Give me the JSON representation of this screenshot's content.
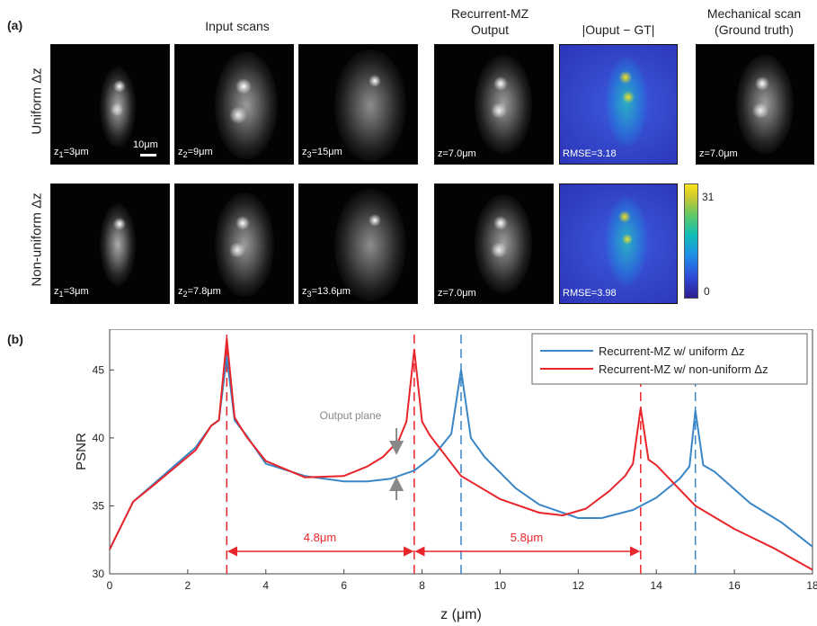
{
  "panel_a": {
    "label": "(a)",
    "headers": {
      "input": "Input scans",
      "recurrent_line1": "Recurrent-MZ",
      "recurrent_line2": "Output",
      "diff": "|Ouput − GT|",
      "mech_line1": "Mechanical scan",
      "mech_line2": "(Ground truth)"
    },
    "row_labels": [
      "Uniform Δz",
      "Non-uniform Δz"
    ],
    "scale_bar": "10μm",
    "rows": [
      {
        "inputs": [
          {
            "prefix": "z",
            "sub": "1",
            "rest": "=3μm"
          },
          {
            "prefix": "z",
            "sub": "2",
            "rest": "=9μm"
          },
          {
            "prefix": "z",
            "sub": "3",
            "rest": "=15μm"
          }
        ],
        "output_label": "z=7.0μm",
        "rmse": "RMSE=3.18",
        "gt_label": "z=7.0μm"
      },
      {
        "inputs": [
          {
            "prefix": "z",
            "sub": "1",
            "rest": "=3μm"
          },
          {
            "prefix": "z",
            "sub": "2",
            "rest": "=7.8μm"
          },
          {
            "prefix": "z",
            "sub": "3",
            "rest": "=13.6μm"
          }
        ],
        "output_label": "z=7.0μm",
        "rmse": "RMSE=3.98"
      }
    ],
    "colorbar": {
      "max": "31",
      "min": "0"
    }
  },
  "panel_b": {
    "label": "(b)",
    "annotations": {
      "output_plane": "Output plane",
      "gap1": "4.8μm",
      "gap2": "5.8μm"
    },
    "colors": {
      "uniform": "#3a86c6",
      "nonuniform": "#e8252a",
      "arrow_gray": "#888888"
    }
  },
  "chart_data": {
    "type": "line",
    "title": "",
    "xlabel": "z (μm)",
    "ylabel": "PSNR",
    "xlim": [
      0,
      18
    ],
    "ylim": [
      30,
      48
    ],
    "xticks": [
      0,
      2,
      4,
      6,
      8,
      10,
      12,
      14,
      16,
      18
    ],
    "yticks": [
      30,
      35,
      40,
      45
    ],
    "legend_position": "top-right",
    "series": [
      {
        "name": "Recurrent-MZ w/ uniform Δz",
        "color": "#3a86c6",
        "x": [
          0,
          0.6,
          1.2,
          2.2,
          2.6,
          2.8,
          3.0,
          3.2,
          3.5,
          4.0,
          5.0,
          6.0,
          6.6,
          7.2,
          7.8,
          8.3,
          8.75,
          9.0,
          9.25,
          9.6,
          10.4,
          11.0,
          12.0,
          12.6,
          13.4,
          14.0,
          14.6,
          14.85,
          15.0,
          15.2,
          15.5,
          16.4,
          17.2,
          18.0
        ],
        "y": [
          31.8,
          35.3,
          36.8,
          39.3,
          40.9,
          41.3,
          46.0,
          41.3,
          40.2,
          38.1,
          37.2,
          36.8,
          36.8,
          37.0,
          37.6,
          38.7,
          40.3,
          45.0,
          40.0,
          38.6,
          36.3,
          35.1,
          34.1,
          34.1,
          34.7,
          35.6,
          37.0,
          37.9,
          42.0,
          38.0,
          37.5,
          35.2,
          33.8,
          32.0
        ]
      },
      {
        "name": "Recurrent-MZ w/ non-uniform Δz",
        "color": "#e8252a",
        "x": [
          0,
          0.6,
          1.2,
          2.2,
          2.6,
          2.8,
          3.0,
          3.2,
          3.5,
          4.0,
          5.0,
          6.0,
          6.6,
          7.0,
          7.4,
          7.6,
          7.8,
          8.0,
          8.2,
          9.0,
          10.0,
          11.0,
          11.6,
          12.2,
          12.8,
          13.2,
          13.4,
          13.6,
          13.8,
          14.0,
          15.0,
          16.0,
          17.0,
          18.0
        ],
        "y": [
          31.8,
          35.3,
          36.7,
          39.1,
          40.9,
          41.3,
          47.3,
          41.5,
          40.1,
          38.3,
          37.1,
          37.2,
          37.9,
          38.6,
          39.8,
          41.2,
          46.5,
          41.2,
          40.2,
          37.2,
          35.5,
          34.5,
          34.3,
          34.8,
          36.1,
          37.2,
          38.1,
          42.2,
          38.4,
          38.0,
          35.0,
          33.3,
          31.9,
          30.3
        ]
      }
    ],
    "vlines": [
      {
        "x": 3.0,
        "color": "#e8252a"
      },
      {
        "x": 7.8,
        "color": "#e8252a"
      },
      {
        "x": 13.6,
        "color": "#e8252a"
      },
      {
        "x": 9.0,
        "color": "#3a86c6"
      },
      {
        "x": 15.0,
        "color": "#3a86c6"
      }
    ],
    "spans": [
      {
        "from": 3.0,
        "to": 7.8,
        "label": "4.8μm"
      },
      {
        "from": 7.8,
        "to": 13.6,
        "label": "5.8μm"
      }
    ],
    "output_plane_x": 7.0
  }
}
